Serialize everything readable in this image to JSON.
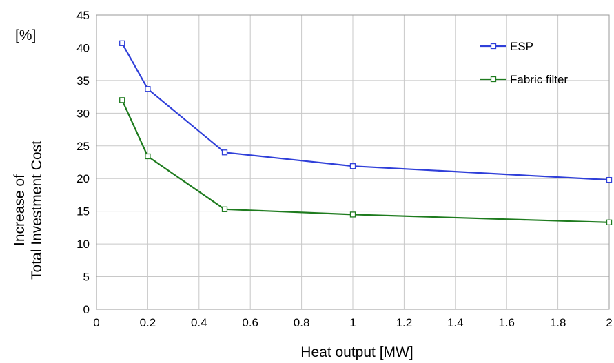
{
  "chart_data": {
    "type": "line",
    "xlabel": "Heat output  [MW]",
    "ylabel_lines": [
      "Increase of",
      "Total Investment Cost"
    ],
    "yunit": "[%]",
    "xlim": [
      0,
      2
    ],
    "ylim": [
      0,
      45
    ],
    "xticks": [
      "0",
      "0.2",
      "0.4",
      "0.6",
      "0.8",
      "1",
      "1.2",
      "1.4",
      "1.6",
      "1.8",
      "2"
    ],
    "yticks": [
      "0",
      "5",
      "10",
      "15",
      "20",
      "25",
      "30",
      "35",
      "40",
      "45"
    ],
    "xtick_values": [
      0,
      0.2,
      0.4,
      0.6,
      0.8,
      1,
      1.2,
      1.4,
      1.6,
      1.8,
      2
    ],
    "ytick_values": [
      0,
      5,
      10,
      15,
      20,
      25,
      30,
      35,
      40,
      45
    ],
    "grid": true,
    "legend_position": "top-right",
    "series": [
      {
        "name": "ESP",
        "color": "#2f3fd9",
        "marker": "open-square",
        "x": [
          0.1,
          0.2,
          0.5,
          1,
          2
        ],
        "y": [
          40.7,
          33.7,
          24.0,
          21.9,
          19.8
        ]
      },
      {
        "name": "Fabric filter",
        "color": "#1e7b1e",
        "marker": "open-square",
        "x": [
          0.1,
          0.2,
          0.5,
          1,
          2
        ],
        "y": [
          32.0,
          23.4,
          15.3,
          14.5,
          13.3
        ]
      }
    ]
  }
}
